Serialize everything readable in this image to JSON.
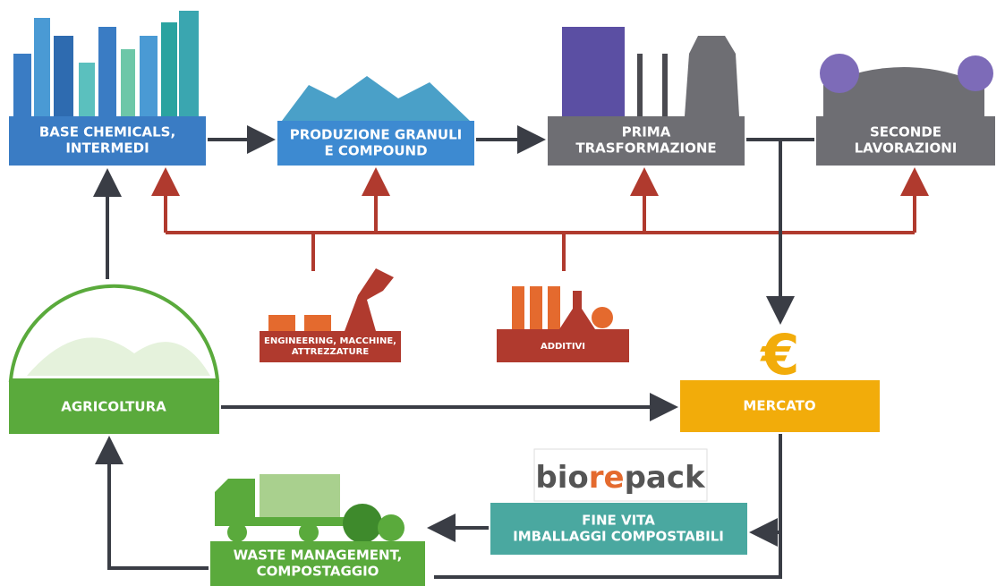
{
  "nodes": [
    {
      "label": [
        "BASE CHEMICALS,",
        "INTERMEDI"
      ]
    },
    {
      "label": [
        "PRODUZIONE GRANULI",
        "E COMPOUND"
      ]
    },
    {
      "label": [
        "PRIMA",
        "TRASFORMAZIONE"
      ]
    },
    {
      "label": [
        "SECONDE",
        "LAVORAZIONI"
      ]
    },
    {
      "label": [
        "ENGINEERING, MACCHINE,",
        "ATTREZZATURE"
      ]
    },
    {
      "label": [
        "ADDITIVI"
      ]
    },
    {
      "label": [
        "AGRICOLTURA"
      ]
    },
    {
      "label": [
        "MERCATO"
      ],
      "symbol": "€"
    },
    {
      "label": [
        "FINE VITA",
        "IMBALLAGGI COMPOSTABILI"
      ]
    },
    {
      "label": [
        "WASTE MANAGEMENT,",
        "COMPOSTAGGIO"
      ]
    }
  ],
  "logo": {
    "parts": [
      "bio",
      "re",
      "pack"
    ]
  }
}
